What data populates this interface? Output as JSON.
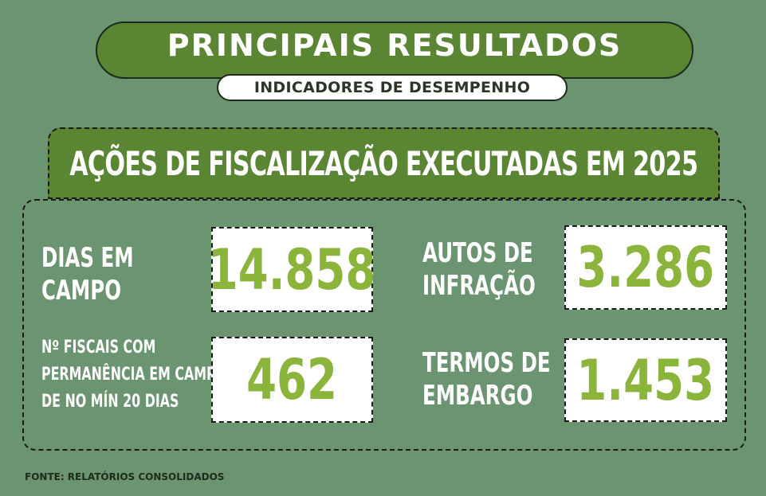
{
  "header": {
    "title": "PRINCIPAIS RESULTADOS",
    "subtitle": "INDICADORES DE DESEMPENHO"
  },
  "section": {
    "title": "AÇÕES DE FISCALIZAÇÃO EXECUTADAS EM 2025"
  },
  "metrics": {
    "dias_em_campo": {
      "label_line1": "DIAS EM",
      "label_line2": "CAMPO",
      "value": "14.858"
    },
    "autos_de_infracao": {
      "label_line1": "AUTOS DE",
      "label_line2": "INFRAÇÃO",
      "value": "3.286"
    },
    "fiscais_permanencia": {
      "label_line1": "Nº FISCAIS COM",
      "label_line2": "PERMANÊNCIA EM CAMPO",
      "label_line3": "DE NO MÍN 20 DIAS",
      "value": "462"
    },
    "termos_de_embargo": {
      "label_line1": "TERMOS DE",
      "label_line2": "EMBARGO",
      "value": "1.453"
    }
  },
  "footer": {
    "source": "FONTE: RELATÓRIOS CONSOLIDADOS"
  },
  "colors": {
    "background": "#6b9470",
    "accent_green": "#5a8634",
    "value_green": "#8ab53a"
  }
}
